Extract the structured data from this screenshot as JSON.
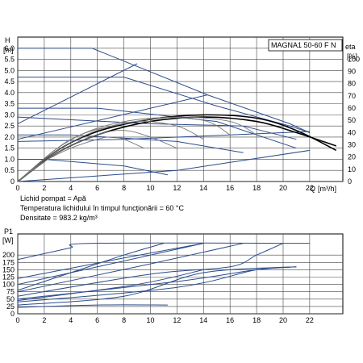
{
  "chart_data": [
    {
      "type": "line",
      "title": "MAGNA1 50-60 F N",
      "ylabel": "H",
      "ylabel_unit": "[m]",
      "y2label": "eta",
      "y2label_unit": "[%]",
      "xlabel": "Q",
      "xlabel_unit": "[m³/h]",
      "xlim": [
        0,
        24.5
      ],
      "ylim": [
        0,
        6.5
      ],
      "y2lim": [
        0,
        118
      ],
      "x_ticks": [
        0,
        2,
        4,
        6,
        8,
        10,
        12,
        14,
        16,
        18,
        20,
        22
      ],
      "y_ticks": [
        0,
        0.5,
        1.0,
        1.5,
        2.0,
        2.5,
        3.0,
        3.5,
        4.0,
        4.5,
        5.0,
        5.5,
        6.0
      ],
      "y_tick_labels": [
        "0",
        "0.5",
        "1.0",
        "1.5",
        "2.0",
        "2.5",
        "3.0",
        "3.5",
        "4.0",
        "4.5",
        "5.0",
        "5.5",
        "6.0"
      ],
      "y2_ticks": [
        0,
        10,
        20,
        30,
        40,
        50,
        60,
        70,
        80,
        90,
        100
      ],
      "grid": true,
      "head_curves": [
        {
          "style": "blue",
          "points": [
            [
              0,
              6.0
            ],
            [
              5.6,
              6.0
            ],
            [
              14.3,
              3.9
            ],
            [
              20.5,
              2.6
            ],
            [
              22,
              2.2
            ]
          ]
        },
        {
          "style": "blue",
          "points": [
            [
              0,
              4.7
            ],
            [
              8,
              4.7
            ],
            [
              15,
              3.4
            ],
            [
              20.5,
              2.5
            ],
            [
              22,
              2.2
            ]
          ]
        },
        {
          "style": "blue",
          "points": [
            [
              0,
              3.3
            ],
            [
              6,
              3.3
            ],
            [
              15,
              2.7
            ],
            [
              21,
              1.5
            ]
          ]
        },
        {
          "style": "blue",
          "points": [
            [
              0,
              2.1
            ],
            [
              4,
              2.1
            ],
            [
              12,
              1.8
            ],
            [
              17,
              1.3
            ]
          ]
        },
        {
          "style": "blue",
          "points": [
            [
              0,
              1.0
            ],
            [
              2,
              1.0
            ],
            [
              8,
              0.7
            ],
            [
              11.3,
              0.3
            ]
          ]
        },
        {
          "style": "blue",
          "points": [
            [
              0,
              2.9
            ],
            [
              10,
              2.6
            ],
            [
              17,
              2.5
            ],
            [
              21,
              1.9
            ]
          ]
        },
        {
          "style": "blue",
          "points": [
            [
              0,
              1.8
            ],
            [
              8,
              1.9
            ],
            [
              16,
              2.1
            ],
            [
              22,
              2.25
            ]
          ]
        },
        {
          "style": "blue",
          "points": [
            [
              0,
              0.0
            ],
            [
              12,
              0.5
            ],
            [
              22,
              1.4
            ]
          ]
        },
        {
          "style": "blue",
          "points": [
            [
              0,
              2.6
            ],
            [
              9,
              5.3
            ]
          ]
        },
        {
          "style": "blue",
          "points": [
            [
              0,
              1.9
            ],
            [
              14.3,
              3.9
            ]
          ]
        }
      ],
      "efficiency_curves": [
        {
          "style": "black",
          "points": [
            [
              0,
              0
            ],
            [
              3,
              1.3
            ],
            [
              6,
              2.1
            ],
            [
              10,
              2.7
            ],
            [
              14,
              2.9
            ],
            [
              18,
              2.7
            ],
            [
              21,
              2.2
            ],
            [
              24,
              1.6
            ]
          ]
        },
        {
          "style": "black",
          "points": [
            [
              0,
              0
            ],
            [
              3,
              1.4
            ],
            [
              6,
              2.25
            ],
            [
              10,
              2.8
            ],
            [
              14,
              3.0
            ],
            [
              18,
              2.85
            ],
            [
              21,
              2.3
            ],
            [
              24,
              1.4
            ]
          ]
        },
        {
          "style": "gray",
          "points": [
            [
              0,
              0
            ],
            [
              2,
              0.9
            ],
            [
              4,
              1.5
            ],
            [
              6,
              1.9
            ],
            [
              7,
              2.0
            ],
            [
              8,
              1.9
            ],
            [
              9.5,
              1.5
            ]
          ]
        },
        {
          "style": "gray",
          "points": [
            [
              0,
              0
            ],
            [
              3,
              1.3
            ],
            [
              6,
              2.1
            ],
            [
              8,
              2.3
            ],
            [
              10,
              2.0
            ],
            [
              12,
              1.5
            ]
          ]
        },
        {
          "style": "gray",
          "points": [
            [
              0,
              0
            ],
            [
              3,
              1.4
            ],
            [
              6,
              2.3
            ],
            [
              9,
              2.7
            ],
            [
              12,
              2.5
            ],
            [
              14,
              1.9
            ]
          ]
        },
        {
          "style": "gray",
          "points": [
            [
              0,
              0
            ],
            [
              3,
              1.5
            ],
            [
              6,
              2.4
            ],
            [
              10,
              2.85
            ],
            [
              14,
              2.75
            ],
            [
              16,
              2.1
            ]
          ]
        },
        {
          "style": "gray",
          "points": [
            [
              0,
              0
            ],
            [
              4,
              1.9
            ],
            [
              8,
              2.6
            ],
            [
              12,
              2.9
            ],
            [
              16,
              2.7
            ],
            [
              18,
              2.1
            ]
          ]
        }
      ],
      "notes": [
        "Lichid pompat = Apă",
        "Temperatura lichidului în timpul funcţionării = 60 °C",
        "Densitate = 983.2 kg/m³"
      ]
    },
    {
      "type": "line",
      "ylabel": "P1",
      "ylabel_unit": "[W]",
      "xlim": [
        0,
        24.5
      ],
      "ylim": [
        0,
        272
      ],
      "x_ticks": [
        0,
        2,
        4,
        6,
        8,
        10,
        12,
        14,
        16,
        18,
        20,
        22
      ],
      "y_ticks": [
        0,
        25,
        50,
        75,
        100,
        125,
        150,
        175,
        200
      ],
      "grid": true,
      "power_curves": [
        {
          "points": [
            [
              0,
              185
            ],
            [
              2,
              205
            ],
            [
              4,
              225
            ],
            [
              5.6,
              240
            ],
            [
              22,
              240
            ]
          ]
        },
        {
          "points": [
            [
              0,
              80
            ],
            [
              4,
              140
            ],
            [
              8,
              200
            ],
            [
              11,
              240
            ]
          ]
        },
        {
          "points": [
            [
              0,
              100
            ],
            [
              6,
              160
            ],
            [
              12,
              220
            ],
            [
              14,
              240
            ]
          ]
        },
        {
          "points": [
            [
              0,
              120
            ],
            [
              8,
              190
            ],
            [
              14,
              240
            ]
          ]
        },
        {
          "points": [
            [
              0,
              75
            ],
            [
              10,
              170
            ],
            [
              16,
              230
            ],
            [
              17,
              240
            ]
          ]
        },
        {
          "points": [
            [
              0,
              60
            ],
            [
              10,
              135
            ],
            [
              16,
              160
            ],
            [
              18,
              200
            ],
            [
              20,
              240
            ]
          ]
        },
        {
          "points": [
            [
              0,
              50
            ],
            [
              12,
              110
            ],
            [
              18,
              150
            ],
            [
              21,
              160
            ]
          ]
        },
        {
          "points": [
            [
              0,
              40
            ],
            [
              12,
              90
            ],
            [
              18,
              150
            ],
            [
              21,
              160
            ]
          ]
        },
        {
          "points": [
            [
              0,
              30
            ],
            [
              8,
              60
            ],
            [
              14,
              140
            ],
            [
              21,
              160
            ]
          ]
        },
        {
          "points": [
            [
              0,
              22
            ],
            [
              6,
              30
            ],
            [
              11.3,
              30
            ]
          ]
        },
        {
          "points": [
            [
              0,
              45
            ],
            [
              9,
              100
            ],
            [
              14,
              150
            ]
          ]
        }
      ]
    }
  ]
}
